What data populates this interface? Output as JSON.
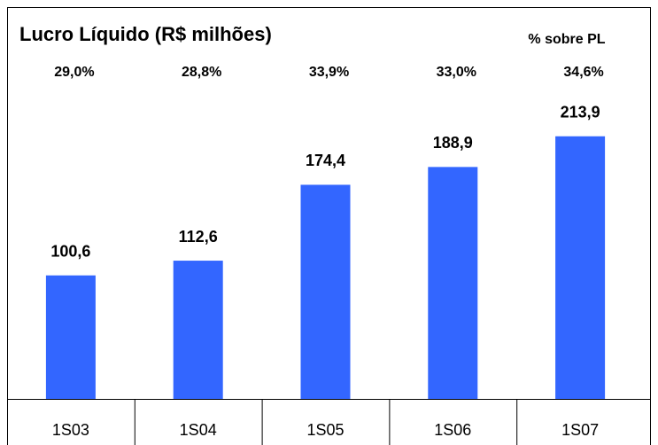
{
  "chart_data": {
    "type": "bar",
    "title": "Lucro Líquido (R$ milhões)",
    "annotation_title": "% sobre PL",
    "annotations": [
      "29,0%",
      "28,8%",
      "33,9%",
      "33,0%",
      "34,6%"
    ],
    "categories": [
      "1S03",
      "1S04",
      "1S05",
      "1S06",
      "1S07"
    ],
    "values": [
      100.6,
      112.6,
      174.4,
      188.9,
      213.9
    ],
    "value_labels": [
      "100,6",
      "112,6",
      "174,4",
      "188,9",
      "213,9"
    ],
    "color": "#3366ff"
  }
}
